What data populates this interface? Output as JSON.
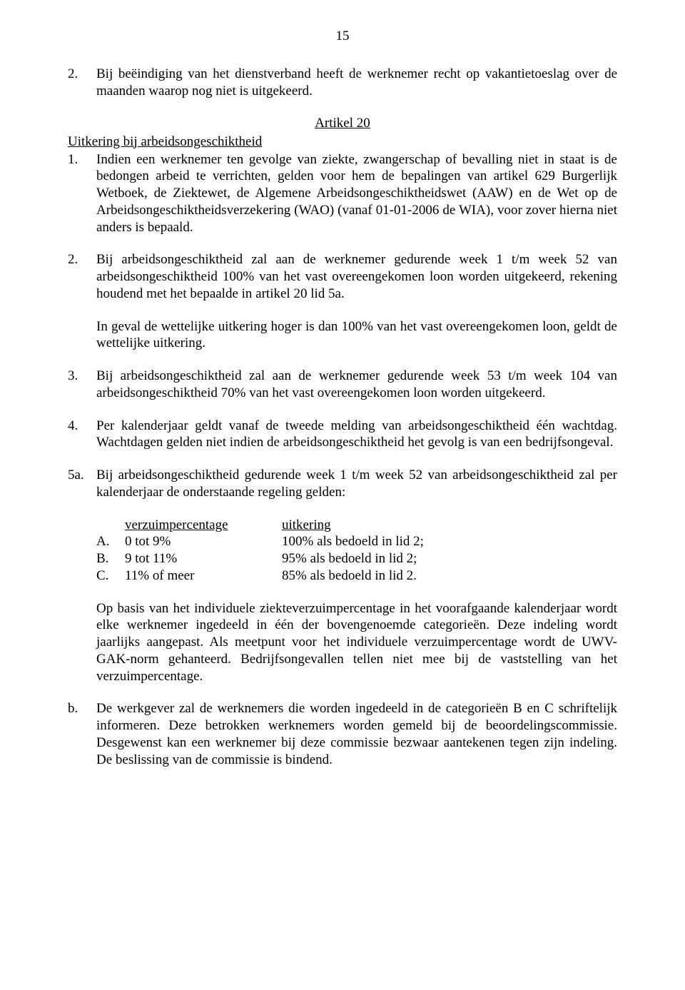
{
  "page_number": "15",
  "para_2_top": {
    "marker": "2.",
    "text": "Bij beëindiging van het dienstverband heeft de werknemer recht op vakantietoeslag over de maanden waarop nog niet is uitgekeerd."
  },
  "article_heading": "Artikel 20",
  "subsection_title": "Uitkering bij arbeidsongeschiktheid",
  "para_1": {
    "marker": "1.",
    "text": "Indien een werknemer ten gevolge van ziekte, zwangerschap of bevalling niet in staat is de bedongen arbeid te verrichten, gelden voor hem de bepalingen van artikel 629 Burgerlijk Wetboek, de Ziektewet, de Algemene Arbeidsongeschiktheidswet (AAW) en de Wet op de Arbeidsongeschiktheidsverzekering (WAO) (vanaf 01-01-2006 de WIA), voor zover hierna niet anders is bepaald."
  },
  "para_2": {
    "marker": "2.",
    "text": "Bij arbeidsongeschiktheid zal aan de werknemer gedurende week 1 t/m week 52 van arbeidsongeschiktheid 100% van het vast overeengekomen loon worden uitgekeerd, rekening houdend met het bepaalde in artikel 20 lid 5a."
  },
  "para_2_sub": "In geval de wettelijke uitkering hoger is dan 100% van het vast overeengekomen loon, geldt de wettelijke uitkering.",
  "para_3": {
    "marker": "3.",
    "text": "Bij arbeidsongeschiktheid zal aan de werknemer gedurende week 53 t/m week 104 van arbeidsongeschiktheid 70% van het vast overeengekomen loon worden uitgekeerd."
  },
  "para_4": {
    "marker": "4.",
    "text": "Per kalenderjaar geldt vanaf de tweede melding van arbeidsongeschiktheid één wachtdag. Wachtdagen gelden niet indien de arbeidsongeschiktheid het gevolg is van een bedrijfsongeval."
  },
  "para_5a": {
    "marker": "5a.",
    "text": "Bij arbeidsongeschiktheid gedurende week 1 t/m week 52 van arbeidsongeschiktheid zal per kalenderjaar de onderstaande regeling gelden:"
  },
  "table": {
    "header": {
      "c2": "verzuimpercentage",
      "c3": "uitkering"
    },
    "rows": [
      {
        "c1": "A.",
        "c2": "0 tot  9%",
        "c3": "100% als bedoeld in lid 2;"
      },
      {
        "c1": "B.",
        "c2": "9 tot  11%",
        "c3": "  95% als bedoeld in lid 2;"
      },
      {
        "c1": "C.",
        "c2": "11% of meer",
        "c3": "  85% als bedoeld in lid 2."
      }
    ]
  },
  "para_5a_followup": "Op basis van het individuele ziekteverzuimpercentage in het voorafgaande kalenderjaar wordt elke werknemer ingedeeld in één der bovengenoemde categorieën. Deze indeling wordt jaarlijks aangepast. Als meetpunt voor het individuele verzuimpercentage wordt de UWV-GAK-norm gehanteerd. Bedrijfsongevallen tellen niet mee bij de vaststelling van het verzuimpercentage.",
  "para_b": {
    "marker": "b.",
    "text": "De werkgever zal de werknemers die worden ingedeeld in de categorieën B en C schriftelijk informeren. Deze betrokken werknemers worden gemeld bij de beoordelingscommissie. Desgewenst kan een werknemer bij deze commissie bezwaar aantekenen tegen zijn indeling. De beslissing van de commissie is bindend."
  }
}
